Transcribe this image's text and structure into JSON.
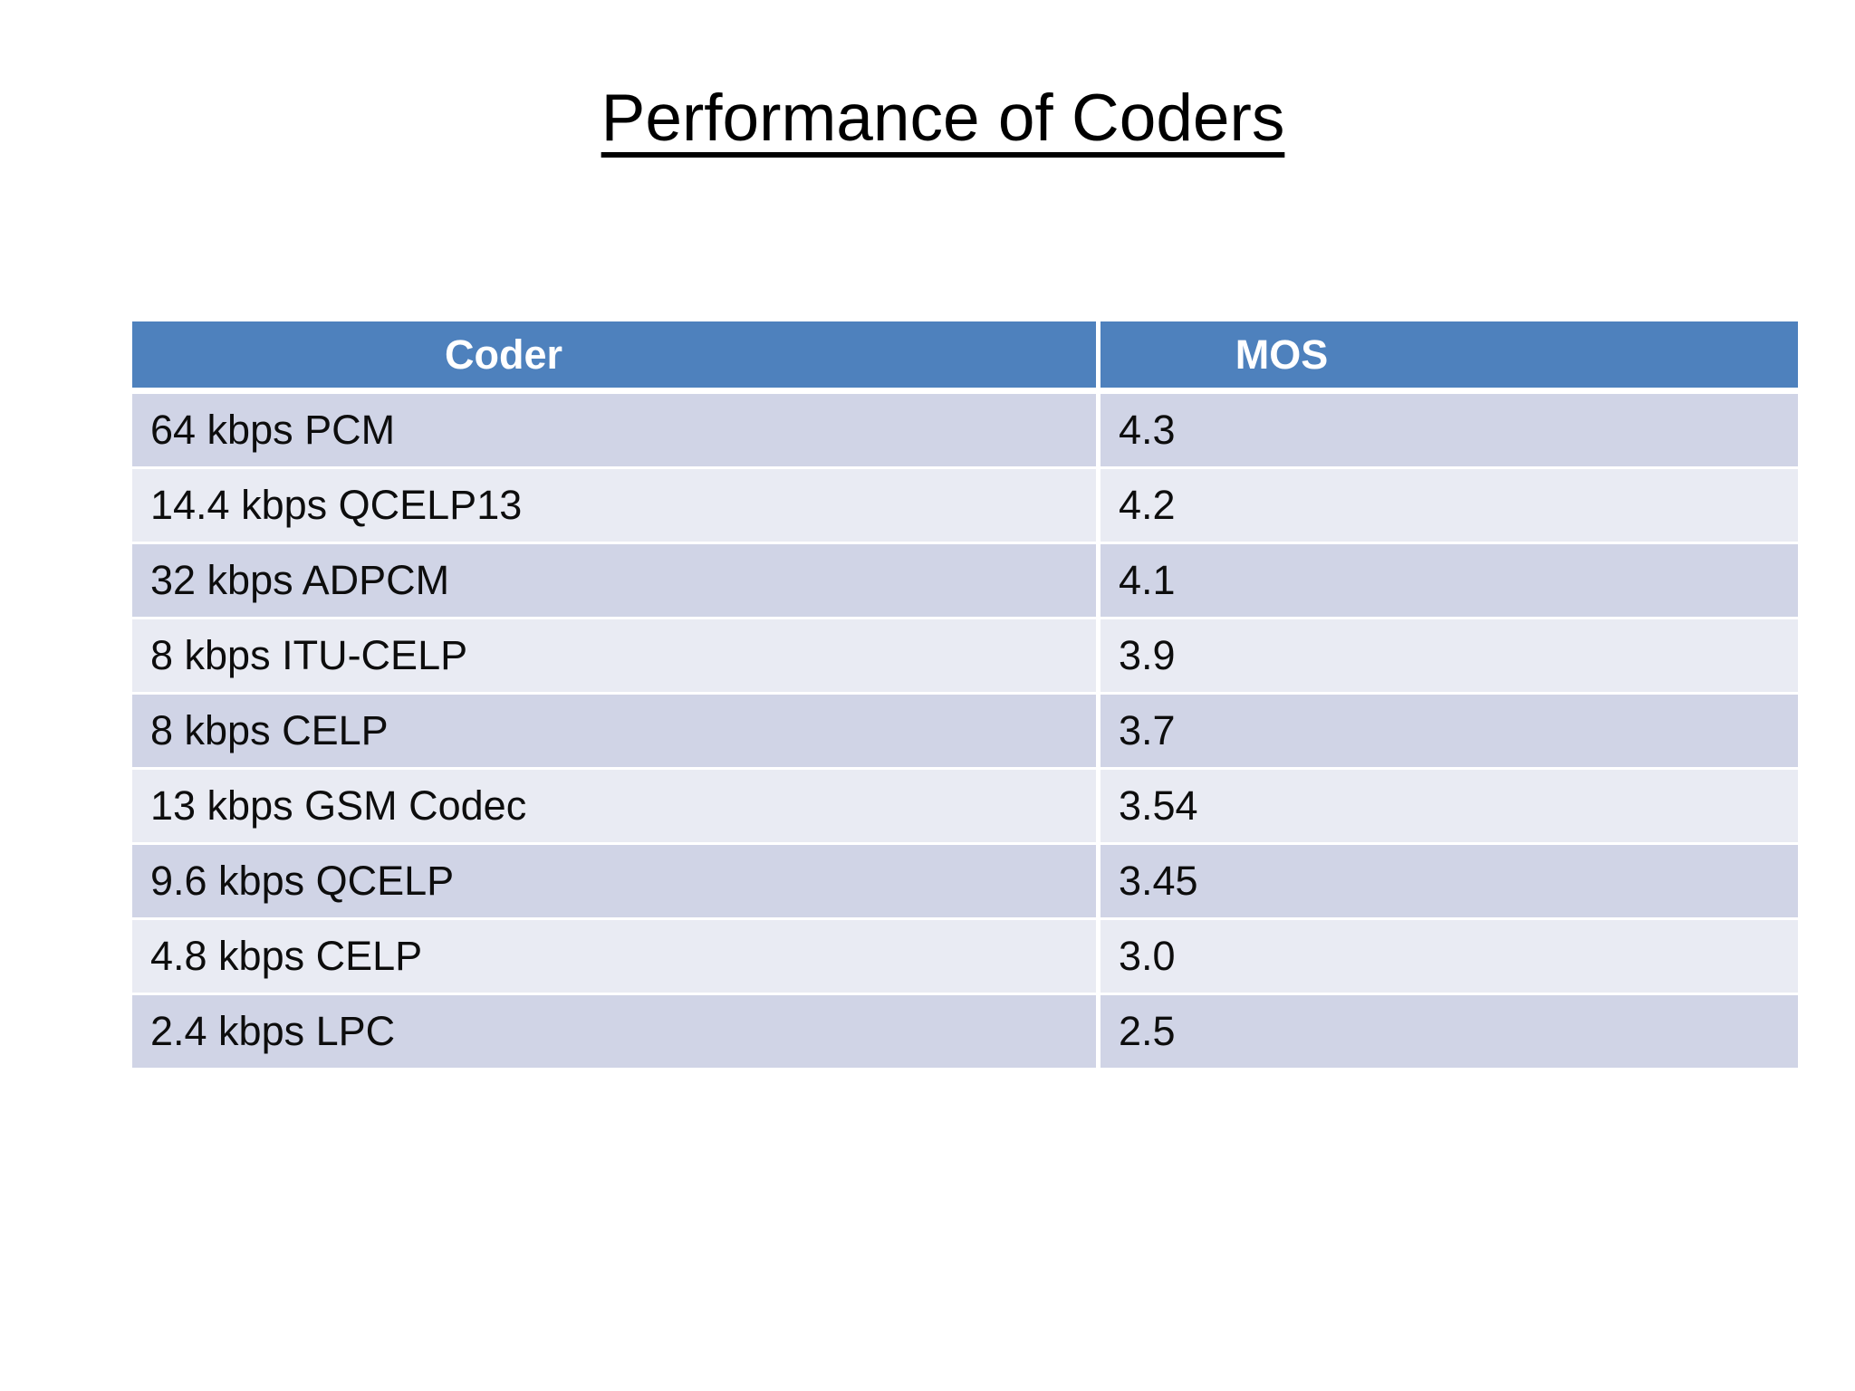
{
  "slide": {
    "title": "Performance of Coders"
  },
  "table": {
    "columns": [
      {
        "label": "Coder"
      },
      {
        "label": "MOS"
      }
    ],
    "rows": [
      {
        "coder": "64 kbps PCM",
        "mos": "4.3"
      },
      {
        "coder": "14.4 kbps QCELP13",
        "mos": "4.2"
      },
      {
        "coder": "32 kbps ADPCM",
        "mos": "4.1"
      },
      {
        "coder": "8 kbps ITU-CELP",
        "mos": "3.9"
      },
      {
        "coder": "8 kbps CELP",
        "mos": "3.7"
      },
      {
        "coder": "13 kbps GSM Codec",
        "mos": "3.54"
      },
      {
        "coder": "9.6 kbps QCELP",
        "mos": "3.45"
      },
      {
        "coder": "4.8 kbps CELP",
        "mos": "3.0"
      },
      {
        "coder": "2.4 kbps LPC",
        "mos": "2.5"
      }
    ]
  },
  "colors": {
    "page_bg": "#FFFFFF",
    "title_text": "#000000",
    "header_bg": "#4E81BD",
    "header_text": "#FFFFFF",
    "row_dark": "#D0D4E6",
    "row_light": "#E9EBF3",
    "divider": "#FFFFFF",
    "body_text": "#0D0D0D"
  }
}
